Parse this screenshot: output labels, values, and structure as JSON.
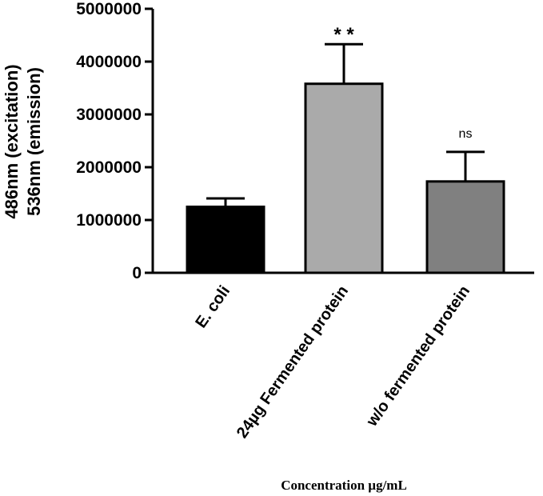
{
  "chart_data": {
    "type": "bar",
    "categories": [
      "E. coli",
      "24µg Fermented protein",
      "w/o fermented protein"
    ],
    "values": [
      1250000,
      3580000,
      1730000
    ],
    "error_upper": [
      1410000,
      4330000,
      2290000
    ],
    "significance": [
      "",
      "* *",
      "ns"
    ],
    "bar_colors": [
      "#000000",
      "#aaaaaa",
      "#808080"
    ],
    "title": "",
    "xlabel": "Concentration µg/mL",
    "ylabel_lines": [
      "486nm (excitation)",
      "536nm (emission)"
    ],
    "ylim": [
      0,
      5000000
    ],
    "yticks": [
      0,
      1000000,
      2000000,
      3000000,
      4000000,
      5000000
    ],
    "ytick_labels": [
      "0",
      "1000000",
      "2000000",
      "3000000",
      "4000000",
      "5000000"
    ],
    "grid": false,
    "legend": "none"
  }
}
